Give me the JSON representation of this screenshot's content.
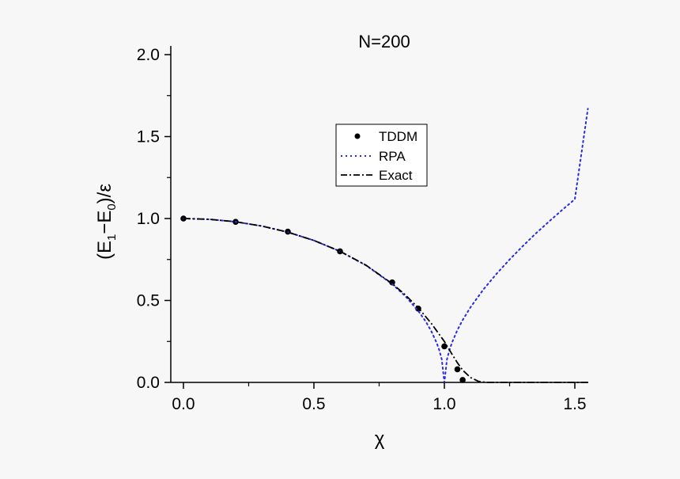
{
  "chart_data": {
    "type": "line",
    "title": "N=200",
    "xlabel": "χ",
    "ylabel": {
      "open": "(E",
      "sub1": "1",
      "minus": "−E",
      "sub0": "0",
      "close": ")/ε"
    },
    "xlim": [
      -0.05,
      1.55
    ],
    "ylim": [
      0,
      2.05
    ],
    "xticks": [
      0.0,
      0.5,
      1.0,
      1.5
    ],
    "xtick_labels": [
      "0.0",
      "0.5",
      "1.0",
      "1.5"
    ],
    "yticks": [
      0.0,
      0.5,
      1.0,
      1.5,
      2.0
    ],
    "ytick_labels": [
      "0.0",
      "0.5",
      "1.0",
      "1.5",
      "2.0"
    ],
    "grid": false,
    "legend_position": "center",
    "series": [
      {
        "name": "TDDM",
        "style": "markers",
        "color": "#000000",
        "x": [
          0.0,
          0.2,
          0.4,
          0.6,
          0.8,
          0.9,
          1.0,
          1.05,
          1.07
        ],
        "y": [
          1.0,
          0.98,
          0.92,
          0.8,
          0.61,
          0.45,
          0.22,
          0.08,
          0.015
        ]
      },
      {
        "name": "RPA",
        "style": "dotted",
        "color": "#2a2adf",
        "x": [
          0.0,
          0.1,
          0.2,
          0.3,
          0.4,
          0.5,
          0.6,
          0.7,
          0.8,
          0.85,
          0.9,
          0.93,
          0.95,
          0.97,
          0.98,
          0.99,
          1.0,
          1.01,
          1.02,
          1.03,
          1.05,
          1.07,
          1.1,
          1.15,
          1.2,
          1.25,
          1.3,
          1.35,
          1.4,
          1.45,
          1.5,
          1.55
        ],
        "y": [
          1.0,
          0.995,
          0.98,
          0.954,
          0.917,
          0.866,
          0.8,
          0.714,
          0.6,
          0.527,
          0.436,
          0.368,
          0.312,
          0.243,
          0.199,
          0.141,
          0.0,
          0.141,
          0.2,
          0.246,
          0.32,
          0.38,
          0.458,
          0.568,
          0.663,
          0.75,
          0.831,
          0.908,
          0.98,
          1.05,
          1.118,
          1.67
        ]
      },
      {
        "name": "Exact",
        "style": "dash-dot",
        "color": "#000000",
        "x": [
          0.0,
          0.1,
          0.2,
          0.3,
          0.4,
          0.5,
          0.6,
          0.7,
          0.8,
          0.85,
          0.9,
          0.95,
          1.0,
          1.03,
          1.05,
          1.07,
          1.1,
          1.13,
          1.16,
          1.2,
          1.3,
          1.4,
          1.5,
          1.55
        ],
        "y": [
          1.0,
          0.995,
          0.98,
          0.954,
          0.917,
          0.866,
          0.8,
          0.715,
          0.603,
          0.535,
          0.455,
          0.36,
          0.25,
          0.17,
          0.12,
          0.075,
          0.03,
          0.007,
          0.0,
          0.0,
          0.0,
          0.0,
          0.0,
          0.0
        ]
      }
    ]
  }
}
